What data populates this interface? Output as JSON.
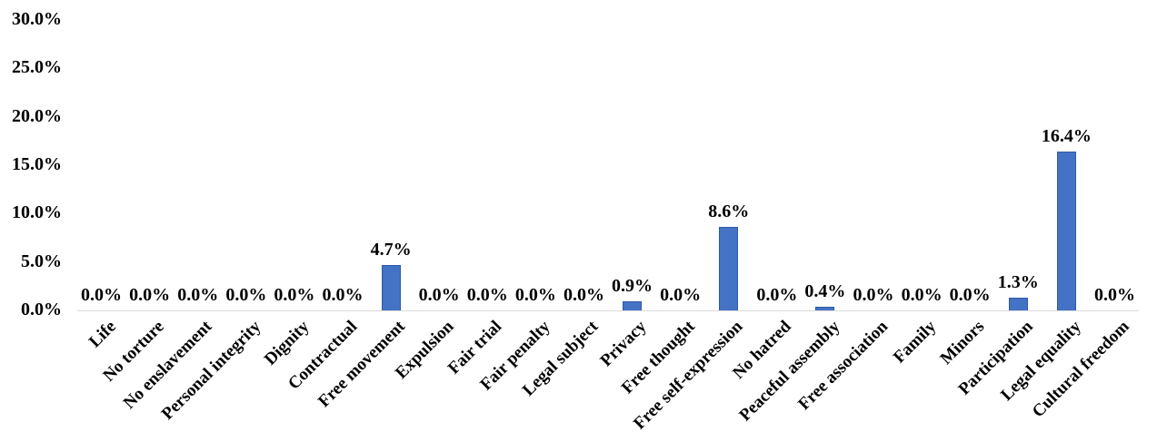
{
  "chart_data": {
    "type": "bar",
    "title": "",
    "xlabel": "",
    "ylabel": "",
    "ylim": [
      0,
      30
    ],
    "yticks": [
      0,
      5,
      10,
      15,
      20,
      25,
      30
    ],
    "ytick_labels": [
      "0.0%",
      "5.0%",
      "10.0%",
      "15.0%",
      "20.0%",
      "25.0%",
      "30.0%"
    ],
    "grid": false,
    "legend": "none",
    "categories": [
      "Life",
      "No torture",
      "No enslavement",
      "Personal integrity",
      "Dignity",
      "Contractual",
      "Free movement",
      "Expulsion",
      "Fair trial",
      "Fair penalty",
      "Legal subject",
      "Privacy",
      "Free thought",
      "Free self-expression",
      "No hatred",
      "Peaceful assembly",
      "Free association",
      "Family",
      "Minors",
      "Participation",
      "Legal equality",
      "Cultural freedom"
    ],
    "values": [
      0.0,
      0.0,
      0.0,
      0.0,
      0.0,
      0.0,
      4.7,
      0.0,
      0.0,
      0.0,
      0.0,
      0.9,
      0.0,
      8.6,
      0.0,
      0.4,
      0.0,
      0.0,
      0.0,
      1.3,
      16.4,
      0.0
    ],
    "data_labels": [
      "0.0%",
      "0.0%",
      "0.0%",
      "0.0%",
      "0.0%",
      "0.0%",
      "4.7%",
      "0.0%",
      "0.0%",
      "0.0%",
      "0.0%",
      "0.9%",
      "0.0%",
      "8.6%",
      "0.0%",
      "0.4%",
      "0.0%",
      "0.0%",
      "0.0%",
      "1.3%",
      "16.4%",
      "0.0%"
    ],
    "colors": {
      "bar_fill": "#4472C4",
      "bar_border": "#2E59A8",
      "axis_line": "#D9D9D9",
      "text": "#000000",
      "background": "#FFFFFF"
    }
  }
}
